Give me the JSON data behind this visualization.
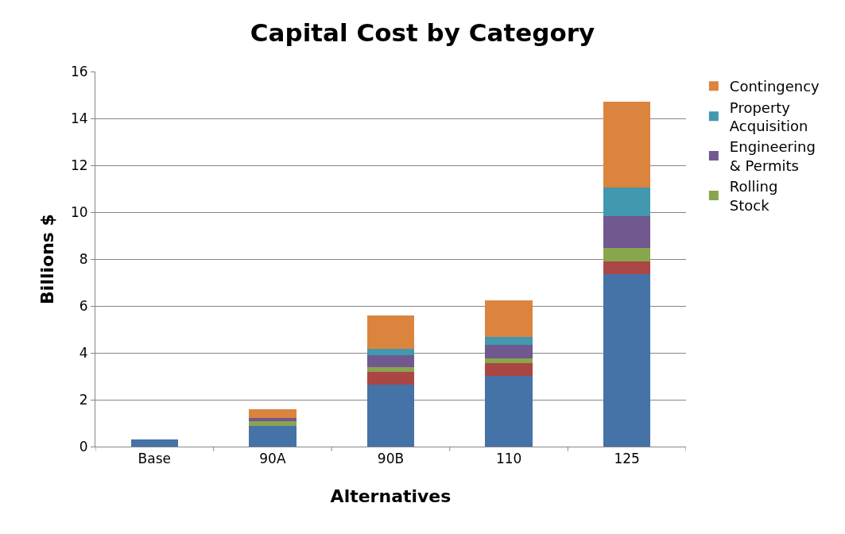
{
  "chart_data": {
    "type": "bar",
    "title": "Capital Cost by Category",
    "xlabel": "Alternatives",
    "ylabel": "Billions $",
    "categories": [
      "Base",
      "90A",
      "90B",
      "110",
      "125"
    ],
    "stacked": true,
    "series": [
      {
        "color": "#4572a7",
        "values": [
          0.3,
          0.89,
          2.64,
          3.01,
          7.36
        ]
      },
      {
        "color": "#aa4643",
        "values": [
          0,
          0,
          0.54,
          0.56,
          0.55
        ]
      },
      {
        "name": "Rolling Stock",
        "color": "#89a54e",
        "values": [
          0,
          0.18,
          0.2,
          0.19,
          0.58
        ]
      },
      {
        "name": "Engineering & Permits",
        "color": "#71588f",
        "values": [
          0,
          0.15,
          0.51,
          0.57,
          1.35
        ]
      },
      {
        "name": "Property Acquisition",
        "color": "#4198af",
        "values": [
          0,
          0,
          0.29,
          0.34,
          1.21
        ]
      },
      {
        "name": "Contingency",
        "color": "#db843d",
        "values": [
          0,
          0.37,
          1.42,
          1.58,
          3.66
        ]
      }
    ],
    "ylim": [
      0,
      16
    ],
    "yticks": [
      0,
      2,
      4,
      6,
      8,
      10,
      12,
      14,
      16
    ],
    "grid": "y",
    "legend": "right"
  }
}
